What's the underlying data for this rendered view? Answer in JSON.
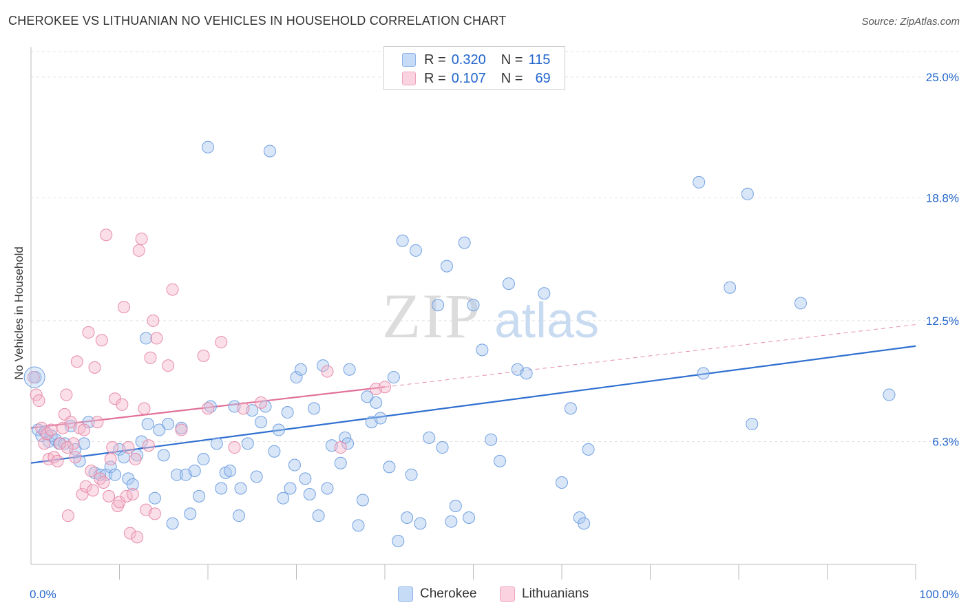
{
  "header": {
    "title": "CHEROKEE VS LITHUANIAN NO VEHICLES IN HOUSEHOLD CORRELATION CHART",
    "source": "Source: ZipAtlas.com"
  },
  "legend": {
    "rows": [
      {
        "r_label": "R =",
        "r_value": "0.320",
        "n_label": "N =",
        "n_value": "115",
        "color": "#a8c8f0"
      },
      {
        "r_label": "R =",
        "r_value": "0.107",
        "n_label": "N =",
        "n_value": "69",
        "color": "#f5b8cc"
      }
    ]
  },
  "bottom_legend": {
    "items": [
      {
        "label": "Cherokee",
        "color": "#a8c8f0"
      },
      {
        "label": "Lithuanians",
        "color": "#f5b8cc"
      }
    ]
  },
  "watermark": {
    "zip": "ZIP",
    "atlas": "atlas"
  },
  "chart_data": {
    "type": "scatter",
    "title": "CHEROKEE VS LITHUANIAN NO VEHICLES IN HOUSEHOLD CORRELATION CHART",
    "xlabel": "",
    "ylabel": "No Vehicles in Household",
    "xlim": [
      0,
      100
    ],
    "ylim": [
      0,
      26.3
    ],
    "x_tick_labels": [
      "0.0%",
      "100.0%"
    ],
    "y_ticks": [
      6.3,
      12.5,
      18.8,
      25.0
    ],
    "y_tick_labels": [
      "6.3%",
      "12.5%",
      "18.8%",
      "25.0%"
    ],
    "grid": true,
    "legend_position": "top-center",
    "colors": {
      "cherokee": "#5b8fd8",
      "lithuanians": "#e87aa0",
      "tick_label": "#2266cc"
    },
    "series": [
      {
        "name": "Cherokee",
        "color": "#a8c8f0",
        "stroke": "#6f9fe0",
        "trend": {
          "x": [
            0,
            100
          ],
          "y": [
            5.2,
            11.2
          ],
          "color": "#2f6fd0"
        },
        "points": [
          [
            0.5,
            9.6
          ],
          [
            0.8,
            6.9
          ],
          [
            1.2,
            6.6
          ],
          [
            1.6,
            6.8
          ],
          [
            2,
            6.3
          ],
          [
            2.3,
            6.6
          ],
          [
            2.8,
            6.4
          ],
          [
            3.2,
            6.2
          ],
          [
            3.8,
            6.2
          ],
          [
            4.5,
            7.1
          ],
          [
            5,
            5.9
          ],
          [
            5.5,
            5.3
          ],
          [
            6,
            6.2
          ],
          [
            6.5,
            7.3
          ],
          [
            7.2,
            4.7
          ],
          [
            7.8,
            4.6
          ],
          [
            8.5,
            4.6
          ],
          [
            9,
            5.0
          ],
          [
            9.5,
            4.6
          ],
          [
            10,
            5.9
          ],
          [
            10.5,
            5.5
          ],
          [
            11,
            4.4
          ],
          [
            11.5,
            4.1
          ],
          [
            12,
            5.6
          ],
          [
            12.5,
            6.3
          ],
          [
            13,
            11.6
          ],
          [
            13.2,
            7.2
          ],
          [
            14,
            3.4
          ],
          [
            14.5,
            6.9
          ],
          [
            15,
            5.6
          ],
          [
            15.5,
            7.2
          ],
          [
            16,
            2.1
          ],
          [
            16.5,
            4.6
          ],
          [
            17,
            7.0
          ],
          [
            17.5,
            4.6
          ],
          [
            18,
            2.6
          ],
          [
            18.5,
            4.8
          ],
          [
            19,
            3.5
          ],
          [
            19.5,
            5.4
          ],
          [
            20,
            21.4
          ],
          [
            20.3,
            8.1
          ],
          [
            21,
            6.2
          ],
          [
            21.5,
            3.9
          ],
          [
            22,
            4.7
          ],
          [
            22.5,
            4.8
          ],
          [
            23,
            8.1
          ],
          [
            23.5,
            2.5
          ],
          [
            23.7,
            3.9
          ],
          [
            24.5,
            6.2
          ],
          [
            25,
            7.9
          ],
          [
            25.5,
            4.5
          ],
          [
            26,
            7.3
          ],
          [
            26.5,
            8.1
          ],
          [
            27,
            21.2
          ],
          [
            27.5,
            5.8
          ],
          [
            28,
            6.9
          ],
          [
            28.5,
            3.4
          ],
          [
            29,
            7.8
          ],
          [
            29.3,
            3.9
          ],
          [
            29.8,
            5.1
          ],
          [
            30,
            9.6
          ],
          [
            30.5,
            10.0
          ],
          [
            31,
            4.4
          ],
          [
            31.5,
            3.6
          ],
          [
            32,
            8.0
          ],
          [
            32.5,
            2.5
          ],
          [
            33,
            10.2
          ],
          [
            33.5,
            3.9
          ],
          [
            34,
            6.1
          ],
          [
            35,
            5.2
          ],
          [
            35.5,
            6.5
          ],
          [
            35.8,
            6.2
          ],
          [
            36,
            10.0
          ],
          [
            37,
            2.0
          ],
          [
            37.5,
            3.3
          ],
          [
            38,
            8.6
          ],
          [
            38.5,
            7.3
          ],
          [
            39,
            8.3
          ],
          [
            39.5,
            7.5
          ],
          [
            40.5,
            5.0
          ],
          [
            41,
            9.6
          ],
          [
            41.5,
            1.2
          ],
          [
            42,
            16.6
          ],
          [
            42.5,
            2.4
          ],
          [
            43,
            4.6
          ],
          [
            43.5,
            16.1
          ],
          [
            44,
            2.1
          ],
          [
            45,
            6.5
          ],
          [
            46,
            13.3
          ],
          [
            46.5,
            6.0
          ],
          [
            47,
            15.3
          ],
          [
            47.5,
            2.2
          ],
          [
            48,
            3.0
          ],
          [
            49,
            16.5
          ],
          [
            49.5,
            2.4
          ],
          [
            50,
            13.3
          ],
          [
            51,
            11.0
          ],
          [
            52,
            6.4
          ],
          [
            53,
            5.3
          ],
          [
            54,
            14.4
          ],
          [
            55,
            10.0
          ],
          [
            56,
            9.8
          ],
          [
            58,
            13.9
          ],
          [
            60,
            4.2
          ],
          [
            61,
            8.0
          ],
          [
            62,
            2.4
          ],
          [
            62.5,
            2.1
          ],
          [
            63,
            5.9
          ],
          [
            75.5,
            19.6
          ],
          [
            76,
            9.8
          ],
          [
            79,
            14.2
          ],
          [
            81,
            19.0
          ],
          [
            81.5,
            7.2
          ],
          [
            87,
            13.4
          ],
          [
            97,
            8.7
          ]
        ]
      },
      {
        "name": "Lithuanians",
        "color": "#f5b8cc",
        "stroke": "#e88aa8",
        "trend": {
          "x": [
            0,
            40
          ],
          "y": [
            7.0,
            9.1
          ],
          "dashed_to": [
            100,
            12.3
          ],
          "color": "#e0709a"
        },
        "points": [
          [
            0.3,
            9.6
          ],
          [
            0.6,
            8.7
          ],
          [
            0.9,
            8.4
          ],
          [
            1.2,
            7.0
          ],
          [
            1.5,
            6.2
          ],
          [
            1.8,
            6.7
          ],
          [
            2,
            5.4
          ],
          [
            2.3,
            6.9
          ],
          [
            2.6,
            5.5
          ],
          [
            3,
            5.3
          ],
          [
            3.3,
            6.2
          ],
          [
            3.6,
            7.0
          ],
          [
            3.8,
            7.7
          ],
          [
            4.0,
            8.7
          ],
          [
            4.2,
            2.5
          ],
          [
            4.5,
            7.3
          ],
          [
            4.8,
            6.2
          ],
          [
            5,
            5.5
          ],
          [
            5.2,
            10.4
          ],
          [
            5.5,
            7.0
          ],
          [
            5.8,
            3.6
          ],
          [
            6,
            6.9
          ],
          [
            6.2,
            4.0
          ],
          [
            6.5,
            11.9
          ],
          [
            6.8,
            4.8
          ],
          [
            7,
            3.8
          ],
          [
            7.2,
            10.1
          ],
          [
            7.5,
            7.3
          ],
          [
            7.8,
            4.4
          ],
          [
            8,
            11.5
          ],
          [
            8.2,
            4.2
          ],
          [
            8.5,
            16.9
          ],
          [
            8.8,
            3.5
          ],
          [
            9,
            5.4
          ],
          [
            9.2,
            6.0
          ],
          [
            9.5,
            8.5
          ],
          [
            9.8,
            3.0
          ],
          [
            10,
            3.2
          ],
          [
            10.3,
            8.2
          ],
          [
            10.5,
            13.2
          ],
          [
            10.8,
            3.5
          ],
          [
            11,
            6.0
          ],
          [
            11.2,
            1.6
          ],
          [
            11.5,
            3.6
          ],
          [
            11.8,
            5.4
          ],
          [
            12,
            1.4
          ],
          [
            12.2,
            16.1
          ],
          [
            12.5,
            16.7
          ],
          [
            12.8,
            8.0
          ],
          [
            13,
            2.8
          ],
          [
            13.3,
            6.1
          ],
          [
            13.5,
            10.6
          ],
          [
            13.8,
            12.5
          ],
          [
            14,
            2.6
          ],
          [
            14.2,
            11.6
          ],
          [
            15.5,
            10.2
          ],
          [
            16,
            14.1
          ],
          [
            17,
            6.9
          ],
          [
            19.5,
            10.7
          ],
          [
            20,
            8.0
          ],
          [
            21.5,
            11.4
          ],
          [
            23,
            6.0
          ],
          [
            24,
            8.0
          ],
          [
            26,
            8.3
          ],
          [
            33.5,
            9.9
          ],
          [
            35,
            6.0
          ],
          [
            39,
            9.0
          ],
          [
            40,
            9.1
          ],
          [
            4.1,
            6.0
          ]
        ]
      }
    ]
  }
}
